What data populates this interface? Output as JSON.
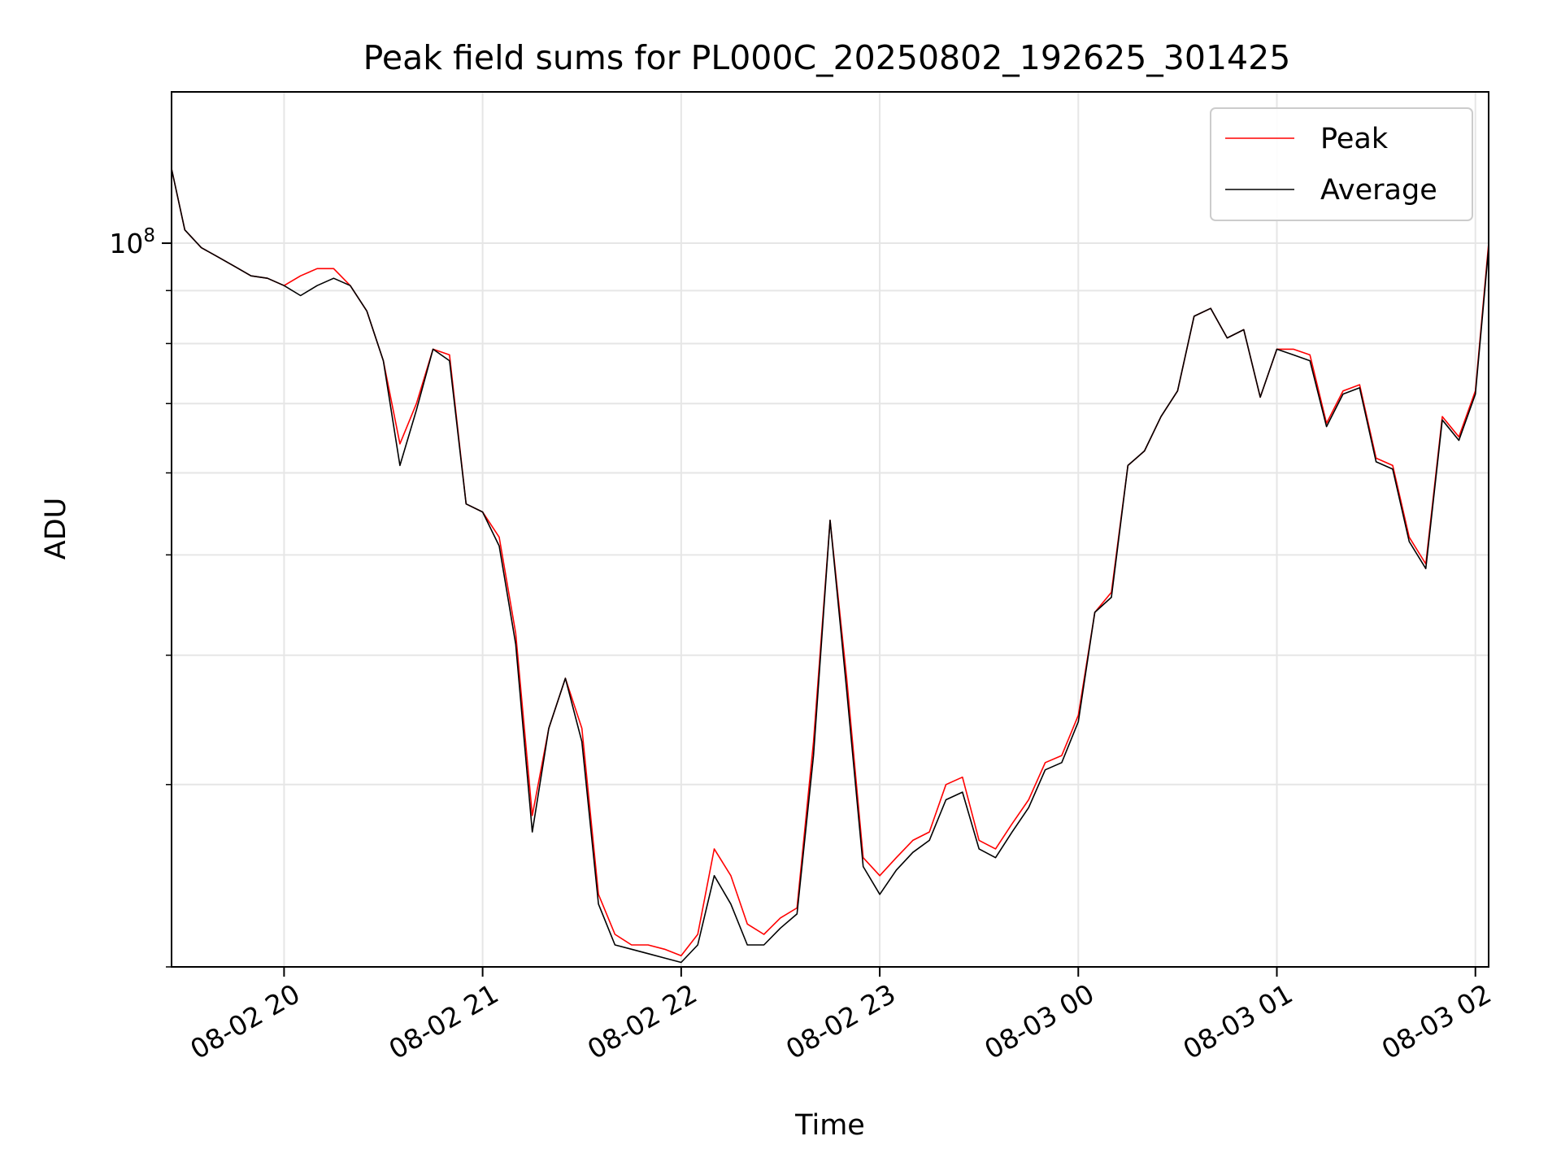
{
  "chart_data": {
    "type": "line",
    "title": "Peak field sums for PL000C_20250802_192625_301425",
    "xlabel": "Time",
    "ylabel": "ADU",
    "yscale": "log",
    "xlim": [
      "2025-08-02 19:26",
      "2025-08-03 02:04"
    ],
    "ylim": [
      20000000,
      140000000
    ],
    "x_ticks": [
      "08-02 20",
      "08-02 21",
      "08-02 22",
      "08-02 23",
      "08-03 00",
      "08-03 01",
      "08-03 02"
    ],
    "x_tick_times": [
      "2025-08-02 20:00",
      "2025-08-02 21:00",
      "2025-08-02 22:00",
      "2025-08-02 23:00",
      "2025-08-03 00:00",
      "2025-08-03 01:00",
      "2025-08-03 02:00"
    ],
    "y_major_tick_label": "10",
    "y_major_tick_exponent": "8",
    "y_major_tick_value": 100000000,
    "grid": true,
    "legend_position": "top-right",
    "colors": {
      "peak": "#ff0000",
      "average": "#000000",
      "grid": "#e6e6e6"
    },
    "x": [
      "19:26",
      "19:30",
      "19:35",
      "19:40",
      "19:45",
      "19:50",
      "19:55",
      "20:00",
      "20:05",
      "20:10",
      "20:15",
      "20:20",
      "20:25",
      "20:30",
      "20:35",
      "20:40",
      "20:45",
      "20:50",
      "20:55",
      "21:00",
      "21:05",
      "21:10",
      "21:15",
      "21:20",
      "21:25",
      "21:30",
      "21:35",
      "21:40",
      "21:45",
      "21:50",
      "21:55",
      "22:00",
      "22:05",
      "22:10",
      "22:15",
      "22:20",
      "22:25",
      "22:30",
      "22:35",
      "22:40",
      "22:45",
      "22:50",
      "22:55",
      "23:00",
      "23:05",
      "23:10",
      "23:15",
      "23:20",
      "23:25",
      "23:30",
      "23:35",
      "23:40",
      "23:45",
      "23:50",
      "23:55",
      "00:00",
      "00:05",
      "00:10",
      "00:15",
      "00:20",
      "00:25",
      "00:30",
      "00:35",
      "00:40",
      "00:45",
      "00:50",
      "00:55",
      "01:00",
      "01:05",
      "01:10",
      "01:15",
      "01:20",
      "01:25",
      "01:30",
      "01:35",
      "01:40",
      "01:45",
      "01:50",
      "01:55",
      "02:00",
      "02:04"
    ],
    "series": [
      {
        "name": "Peak",
        "values": [
          118000000,
          103000000,
          99000000,
          97000000,
          95000000,
          93000000,
          92500000,
          91000000,
          93000000,
          94500000,
          94500000,
          91000000,
          86000000,
          77000000,
          64000000,
          70000000,
          79000000,
          78000000,
          56000000,
          55000000,
          52000000,
          42000000,
          28000000,
          34000000,
          38000000,
          34000000,
          23500000,
          21500000,
          21000000,
          21000000,
          20800000,
          20500000,
          21500000,
          26000000,
          24500000,
          22000000,
          21500000,
          22300000,
          22800000,
          33000000,
          54000000,
          38000000,
          25500000,
          24500000,
          25500000,
          26500000,
          27000000,
          30000000,
          30500000,
          26500000,
          26000000,
          27500000,
          29000000,
          31500000,
          32000000,
          35000000,
          44000000,
          46000000,
          61000000,
          63000000,
          68000000,
          72000000,
          85000000,
          86500000,
          81000000,
          82500000,
          71000000,
          79000000,
          79000000,
          78000000,
          67000000,
          72000000,
          73000000,
          62000000,
          61000000,
          52000000,
          49000000,
          68000000,
          65000000,
          72000000,
          100000000
        ]
      },
      {
        "name": "Average",
        "values": [
          118000000,
          103000000,
          99000000,
          97000000,
          95000000,
          93000000,
          92500000,
          91000000,
          89000000,
          91000000,
          92500000,
          91000000,
          86000000,
          77000000,
          61000000,
          69000000,
          79000000,
          77000000,
          56000000,
          55000000,
          51000000,
          41000000,
          27000000,
          34000000,
          38000000,
          33000000,
          23000000,
          21000000,
          20800000,
          20600000,
          20400000,
          20200000,
          21000000,
          24500000,
          23000000,
          21000000,
          21000000,
          21800000,
          22500000,
          32000000,
          54000000,
          37000000,
          25000000,
          23500000,
          24800000,
          25800000,
          26500000,
          29000000,
          29500000,
          26000000,
          25500000,
          27000000,
          28500000,
          31000000,
          31500000,
          34500000,
          44000000,
          45500000,
          61000000,
          63000000,
          68000000,
          72000000,
          85000000,
          86500000,
          81000000,
          82500000,
          71000000,
          79000000,
          78000000,
          77000000,
          66500000,
          71500000,
          72500000,
          61500000,
          60500000,
          51500000,
          48500000,
          67500000,
          64500000,
          71500000,
          99000000
        ]
      }
    ]
  }
}
